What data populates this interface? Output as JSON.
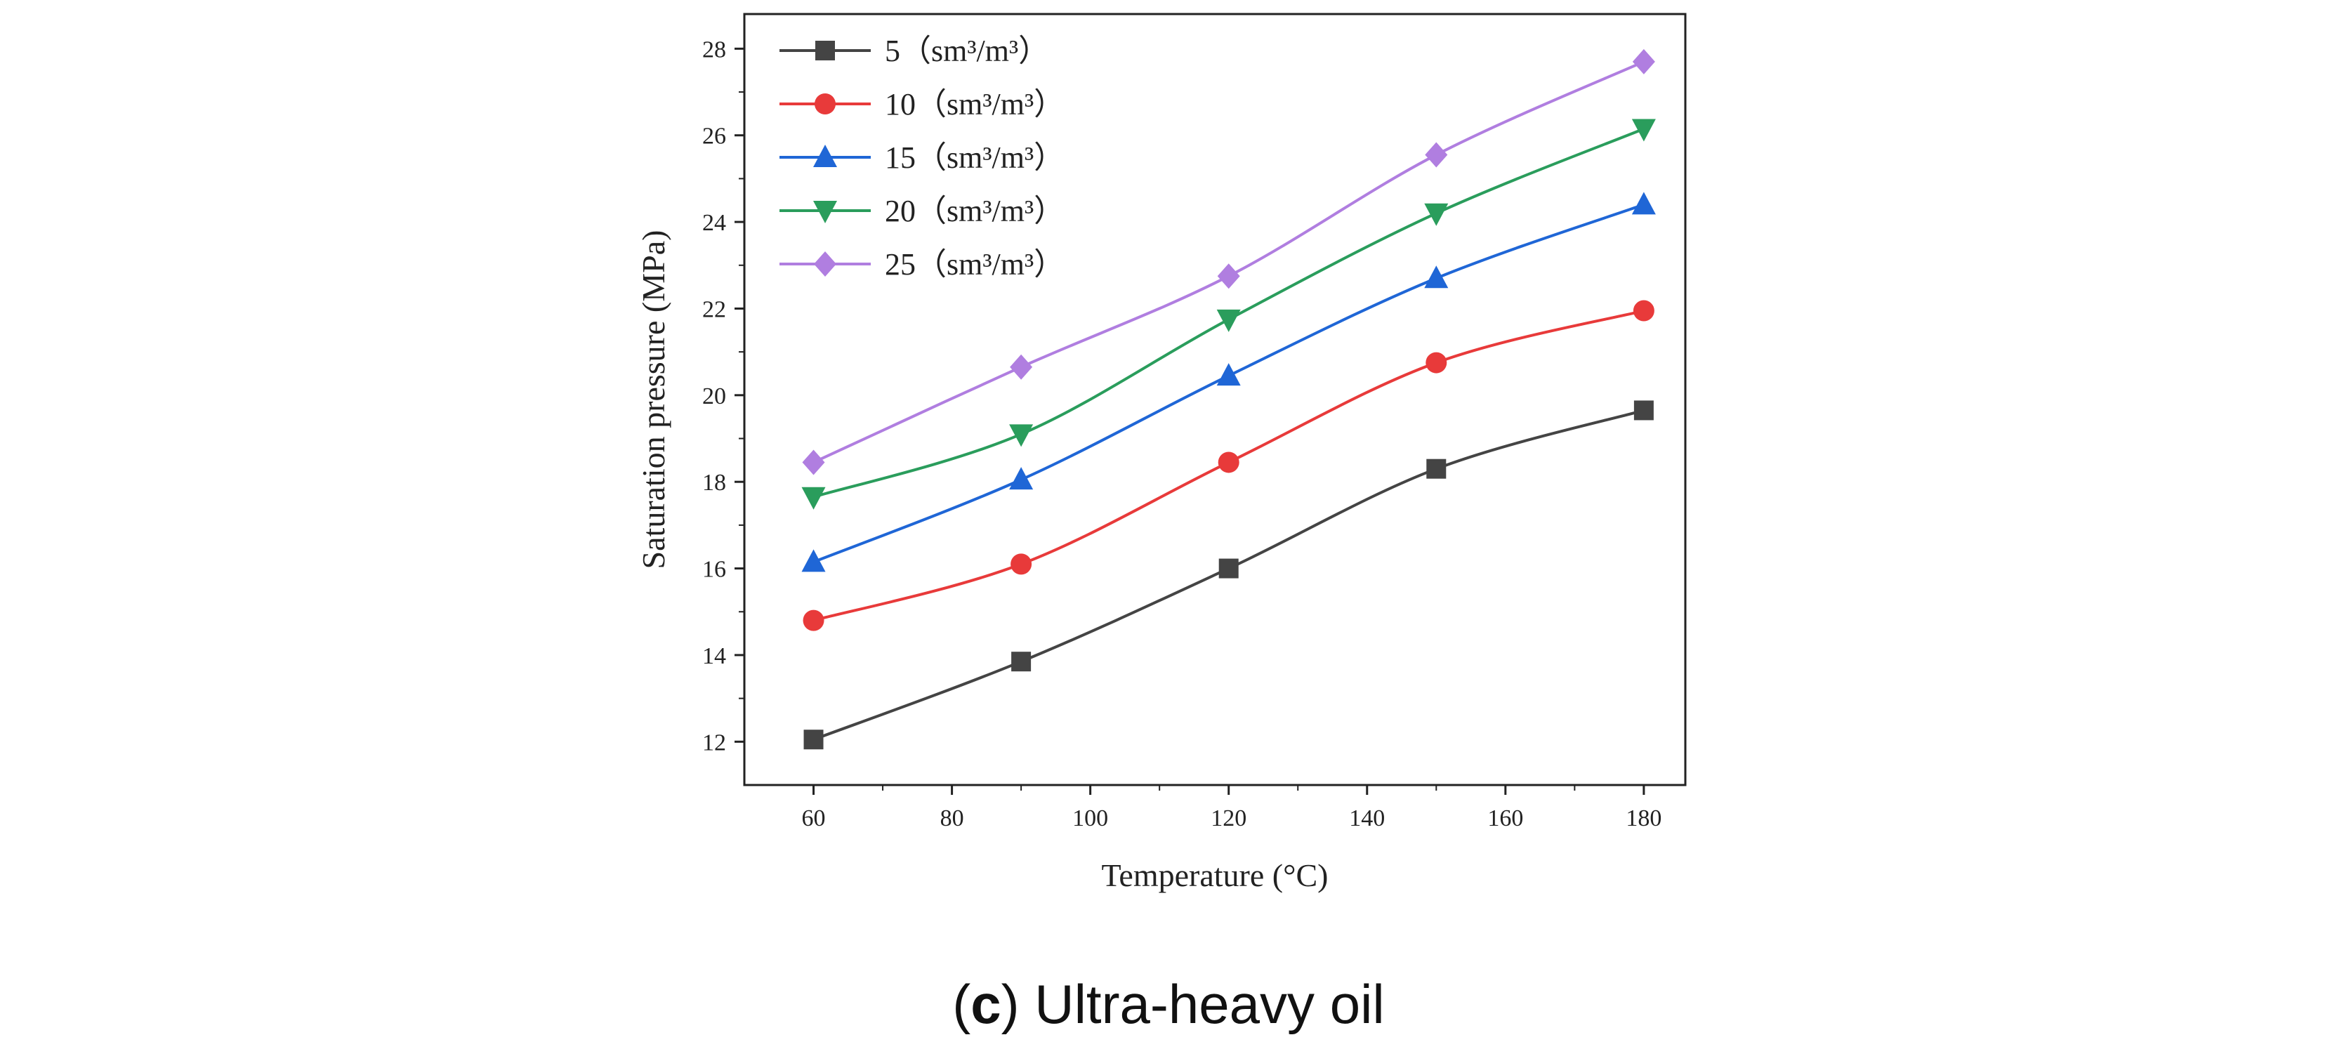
{
  "chart_data": {
    "type": "line",
    "title": "",
    "xlabel": "Temperature (°C)",
    "ylabel": "Saturation pressure (MPa)",
    "xlim": [
      50,
      186
    ],
    "ylim": [
      11,
      28.8
    ],
    "xticks": [
      60,
      80,
      100,
      120,
      140,
      160,
      180
    ],
    "yticks": [
      12,
      14,
      16,
      18,
      20,
      22,
      24,
      26,
      28
    ],
    "legend_position": "top-left",
    "series": [
      {
        "name": "5",
        "unit": "（sm³/m³）",
        "color": "#444444",
        "marker": "square",
        "x": [
          60,
          90,
          120,
          150,
          180
        ],
        "y": [
          12.05,
          13.85,
          16.0,
          18.3,
          19.65
        ]
      },
      {
        "name": "10",
        "unit": "（sm³/m³）",
        "color": "#e83a3a",
        "marker": "circle",
        "x": [
          60,
          90,
          120,
          150,
          180
        ],
        "y": [
          14.8,
          16.1,
          18.45,
          20.75,
          21.95
        ]
      },
      {
        "name": "15",
        "unit": "（sm³/m³）",
        "color": "#1f66d6",
        "marker": "triangle-up",
        "x": [
          60,
          90,
          120,
          150,
          180
        ],
        "y": [
          16.15,
          18.05,
          20.45,
          22.7,
          24.4
        ]
      },
      {
        "name": "20",
        "unit": "（sm³/m³）",
        "color": "#2a9d5c",
        "marker": "triangle-down",
        "x": [
          60,
          90,
          120,
          150,
          180
        ],
        "y": [
          17.65,
          19.1,
          21.75,
          24.2,
          26.15
        ]
      },
      {
        "name": "25",
        "unit": "（sm³/m³）",
        "color": "#b07ee0",
        "marker": "diamond",
        "x": [
          60,
          90,
          120,
          150,
          180
        ],
        "y": [
          18.45,
          20.65,
          22.75,
          25.55,
          27.7
        ]
      }
    ]
  },
  "caption": {
    "letter": "c",
    "open": "(",
    "close": ")",
    "text": "Ultra-heavy oil"
  }
}
